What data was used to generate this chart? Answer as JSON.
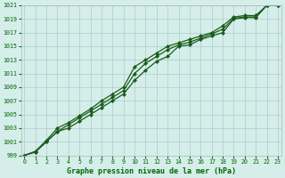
{
  "title": "Graphe pression niveau de la mer (hPa)",
  "bg_color": "#d5eeea",
  "plot_bg_color": "#d5eeea",
  "line_color": "#1a5c1a",
  "marker": "D",
  "markersize": 2.2,
  "linewidth": 0.9,
  "grid_color": "#aacccc",
  "grid_linewidth": 0.5,
  "xlim": [
    -0.3,
    23.3
  ],
  "ylim": [
    999,
    1021
  ],
  "xticks": [
    0,
    1,
    2,
    3,
    4,
    5,
    6,
    7,
    8,
    9,
    10,
    11,
    12,
    13,
    14,
    15,
    16,
    17,
    18,
    19,
    20,
    21,
    22,
    23
  ],
  "yticks": [
    999,
    1001,
    1003,
    1005,
    1007,
    1009,
    1011,
    1013,
    1015,
    1017,
    1019,
    1021
  ],
  "series1": [
    999,
    999.5,
    1001,
    1002.5,
    1003,
    1004,
    1005,
    1006,
    1007,
    1008,
    1010,
    1011.5,
    1012.8,
    1013.5,
    1015,
    1015.2,
    1016,
    1016.5,
    1017,
    1019,
    1019.2,
    1019.2,
    1021,
    1021
  ],
  "series2": [
    999,
    999.6,
    1001.2,
    1003,
    1003.8,
    1004.8,
    1005.8,
    1007,
    1008,
    1009,
    1012,
    1013,
    1014,
    1015,
    1015.5,
    1016,
    1016.5,
    1017,
    1018,
    1019.3,
    1019.5,
    1019.5,
    1021,
    1021
  ],
  "series3": [
    999,
    999.5,
    1001,
    1002.5,
    1003.5,
    1004.5,
    1005.5,
    1006.5,
    1007.5,
    1008.5,
    1011,
    1012.5,
    1013.5,
    1014.5,
    1015.2,
    1015.6,
    1016.2,
    1016.8,
    1017.5,
    1019.1,
    1019.3,
    1019.3,
    1021,
    1021
  ],
  "title_fontsize": 6.0,
  "tick_fontsize": 4.8,
  "label_color": "#006600"
}
